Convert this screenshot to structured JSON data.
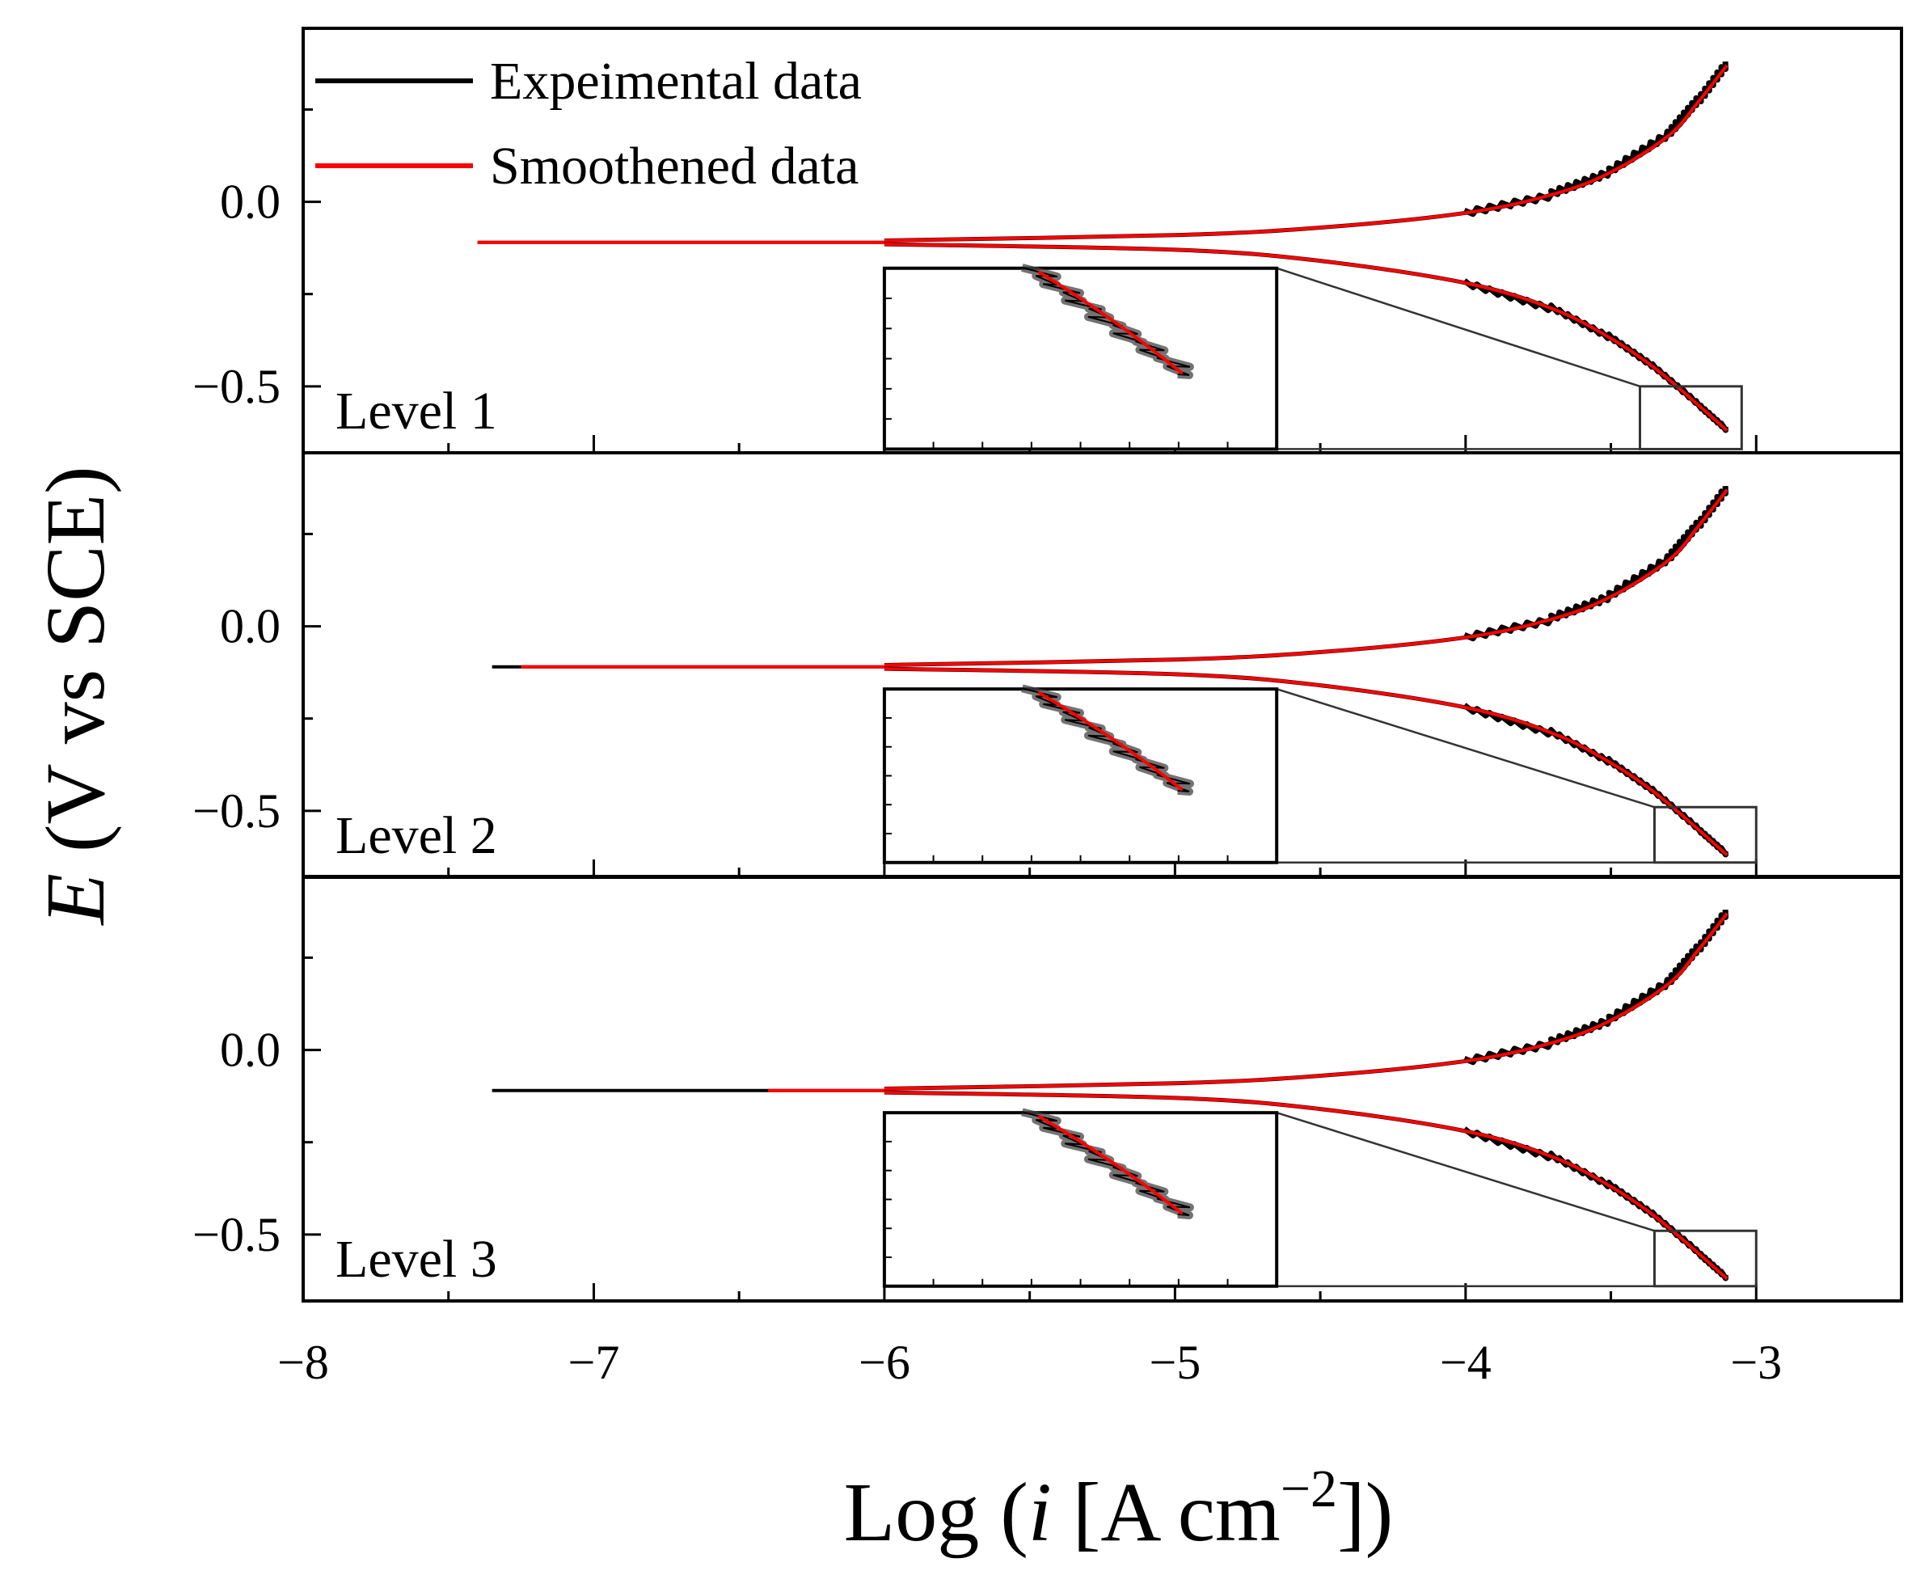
{
  "chart_data": {
    "type": "line",
    "title": "",
    "xlabel": {
      "prefix": "Log (",
      "var": "i",
      "unit": " [A cm",
      "exp": "−2",
      "suffix": "])"
    },
    "ylabel": {
      "var": "E",
      "rest": " (V vs SCE)"
    },
    "xlim": [
      -8,
      -2.5
    ],
    "ylim": [
      -0.68,
      0.47
    ],
    "x_ticks": [
      -8,
      -7,
      -6,
      -5,
      -4,
      -3
    ],
    "x_tick_labels": [
      "−8",
      "−7",
      "−6",
      "−5",
      "−4",
      "−3"
    ],
    "y_ticks": [
      0.0,
      -0.5
    ],
    "y_tick_labels": [
      "0.0",
      "−0.5"
    ],
    "colors": {
      "experimental": "#000000",
      "smoothed": "#ff0000",
      "axis": "#000000"
    },
    "legend": [
      {
        "name": "Expeimental data",
        "color": "#000000"
      },
      {
        "name": "Smoothened data",
        "color": "#ff0000"
      }
    ],
    "panels": [
      {
        "label": "Level 1",
        "ecorr": -0.11,
        "experimental_start_x": -7.4,
        "smoothed_start_x": -7.4,
        "anodic": {
          "x": [
            -6.0,
            -5.0,
            -4.5,
            -4.0,
            -3.7,
            -3.5,
            -3.3,
            -3.2,
            -3.1
          ],
          "y": [
            -0.105,
            -0.09,
            -0.07,
            -0.03,
            0.02,
            0.08,
            0.18,
            0.27,
            0.37
          ]
        },
        "cathodic": {
          "x": [
            -6.0,
            -5.0,
            -4.5,
            -4.0,
            -3.7,
            -3.5,
            -3.35,
            -3.2,
            -3.1
          ],
          "y": [
            -0.115,
            -0.13,
            -0.16,
            -0.22,
            -0.29,
            -0.37,
            -0.45,
            -0.55,
            -0.62
          ]
        },
        "zoom_box": {
          "x": [
            -3.4,
            -3.05
          ],
          "y": [
            -0.67,
            -0.5
          ]
        },
        "inset_range": {
          "x": [
            -6.0,
            -4.65
          ],
          "y": [
            -0.67,
            -0.18
          ]
        }
      },
      {
        "label": "Level 2",
        "ecorr": -0.11,
        "experimental_start_x": -7.35,
        "smoothed_start_x": -7.25,
        "anodic": {
          "x": [
            -6.0,
            -5.0,
            -4.5,
            -4.0,
            -3.7,
            -3.5,
            -3.3,
            -3.2,
            -3.1
          ],
          "y": [
            -0.105,
            -0.09,
            -0.07,
            -0.03,
            0.02,
            0.08,
            0.18,
            0.27,
            0.37
          ]
        },
        "cathodic": {
          "x": [
            -6.0,
            -5.0,
            -4.5,
            -4.0,
            -3.7,
            -3.5,
            -3.35,
            -3.2,
            -3.1
          ],
          "y": [
            -0.115,
            -0.13,
            -0.16,
            -0.22,
            -0.29,
            -0.37,
            -0.45,
            -0.55,
            -0.62
          ]
        },
        "zoom_box": {
          "x": [
            -3.35,
            -3.0
          ],
          "y": [
            -0.64,
            -0.49
          ]
        },
        "inset_range": {
          "x": [
            -6.0,
            -4.65
          ],
          "y": [
            -0.64,
            -0.17
          ]
        }
      },
      {
        "label": "Level 3",
        "ecorr": -0.11,
        "experimental_start_x": -7.35,
        "smoothed_start_x": -6.4,
        "anodic": {
          "x": [
            -6.0,
            -5.0,
            -4.5,
            -4.0,
            -3.7,
            -3.5,
            -3.3,
            -3.2,
            -3.1
          ],
          "y": [
            -0.105,
            -0.09,
            -0.07,
            -0.03,
            0.02,
            0.08,
            0.18,
            0.27,
            0.37
          ]
        },
        "cathodic": {
          "x": [
            -6.0,
            -5.0,
            -4.5,
            -4.0,
            -3.7,
            -3.5,
            -3.35,
            -3.2,
            -3.1
          ],
          "y": [
            -0.115,
            -0.13,
            -0.16,
            -0.22,
            -0.29,
            -0.37,
            -0.45,
            -0.55,
            -0.62
          ]
        },
        "zoom_box": {
          "x": [
            -3.35,
            -3.0
          ],
          "y": [
            -0.64,
            -0.49
          ]
        },
        "inset_range": {
          "x": [
            -6.0,
            -4.65
          ],
          "y": [
            -0.64,
            -0.17
          ]
        }
      }
    ]
  }
}
